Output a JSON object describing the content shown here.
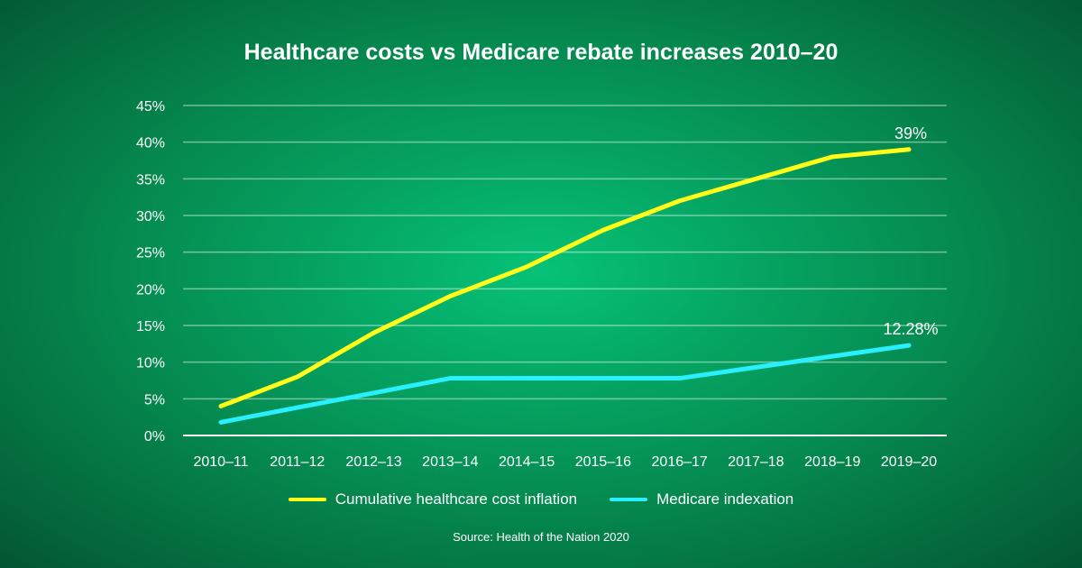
{
  "chart_data": {
    "type": "line",
    "title": "Healthcare costs vs Medicare rebate increases 2010–20",
    "categories": [
      "2010–11",
      "2011–12",
      "2012–13",
      "2013–14",
      "2014–15",
      "2015–16",
      "2016–17",
      "2017–18",
      "2018–19",
      "2019–20"
    ],
    "series": [
      {
        "name": "Cumulative healthcare cost inflation",
        "color": "#ffff1a",
        "values": [
          4,
          8,
          14,
          19,
          23,
          28,
          32,
          35,
          38,
          39
        ],
        "end_label": "39%"
      },
      {
        "name": "Medicare indexation",
        "color": "#29f0ff",
        "values": [
          1.8,
          3.8,
          5.8,
          7.8,
          7.8,
          7.8,
          7.8,
          9.3,
          10.8,
          12.28
        ],
        "end_label": "12.28%"
      }
    ],
    "ylim": [
      0,
      45
    ],
    "yticks": [
      "0%",
      "5%",
      "10%",
      "15%",
      "20%",
      "25%",
      "30%",
      "35%",
      "40%",
      "45%"
    ],
    "grid": true,
    "legend": "bottom-center",
    "source": "Source: Health of the Nation 2020"
  }
}
